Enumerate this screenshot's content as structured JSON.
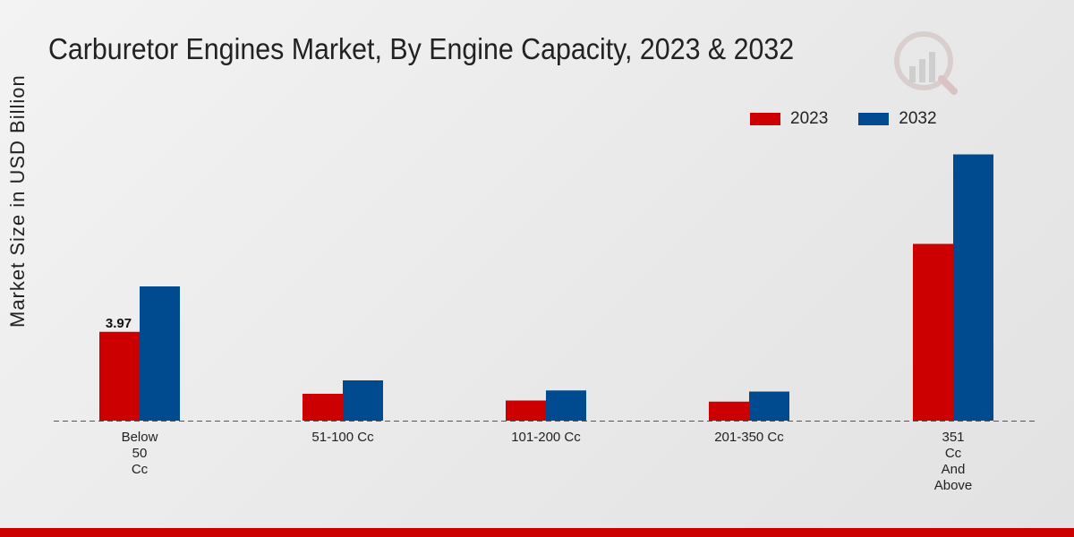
{
  "chart_data": {
    "type": "bar",
    "title": "Carburetor Engines Market, By Engine Capacity, 2023 & 2032",
    "xlabel": "",
    "ylabel": "Market Size in USD Billion",
    "categories": [
      "Below\n50\nCc",
      "51-100 Cc",
      "101-200 Cc",
      "201-350 Cc",
      "351\nCc\nAnd\nAbove"
    ],
    "series": [
      {
        "name": "2023",
        "color": "#cc0000",
        "values": [
          3.97,
          1.2,
          0.9,
          0.85,
          7.9
        ]
      },
      {
        "name": "2032",
        "color": "#004a8f",
        "values": [
          6.0,
          1.8,
          1.35,
          1.3,
          11.9
        ]
      }
    ],
    "data_labels": [
      {
        "series": 0,
        "index": 0,
        "text": "3.97"
      }
    ],
    "ylim": [
      0,
      14
    ],
    "grid": false,
    "legend": "top-right"
  }
}
